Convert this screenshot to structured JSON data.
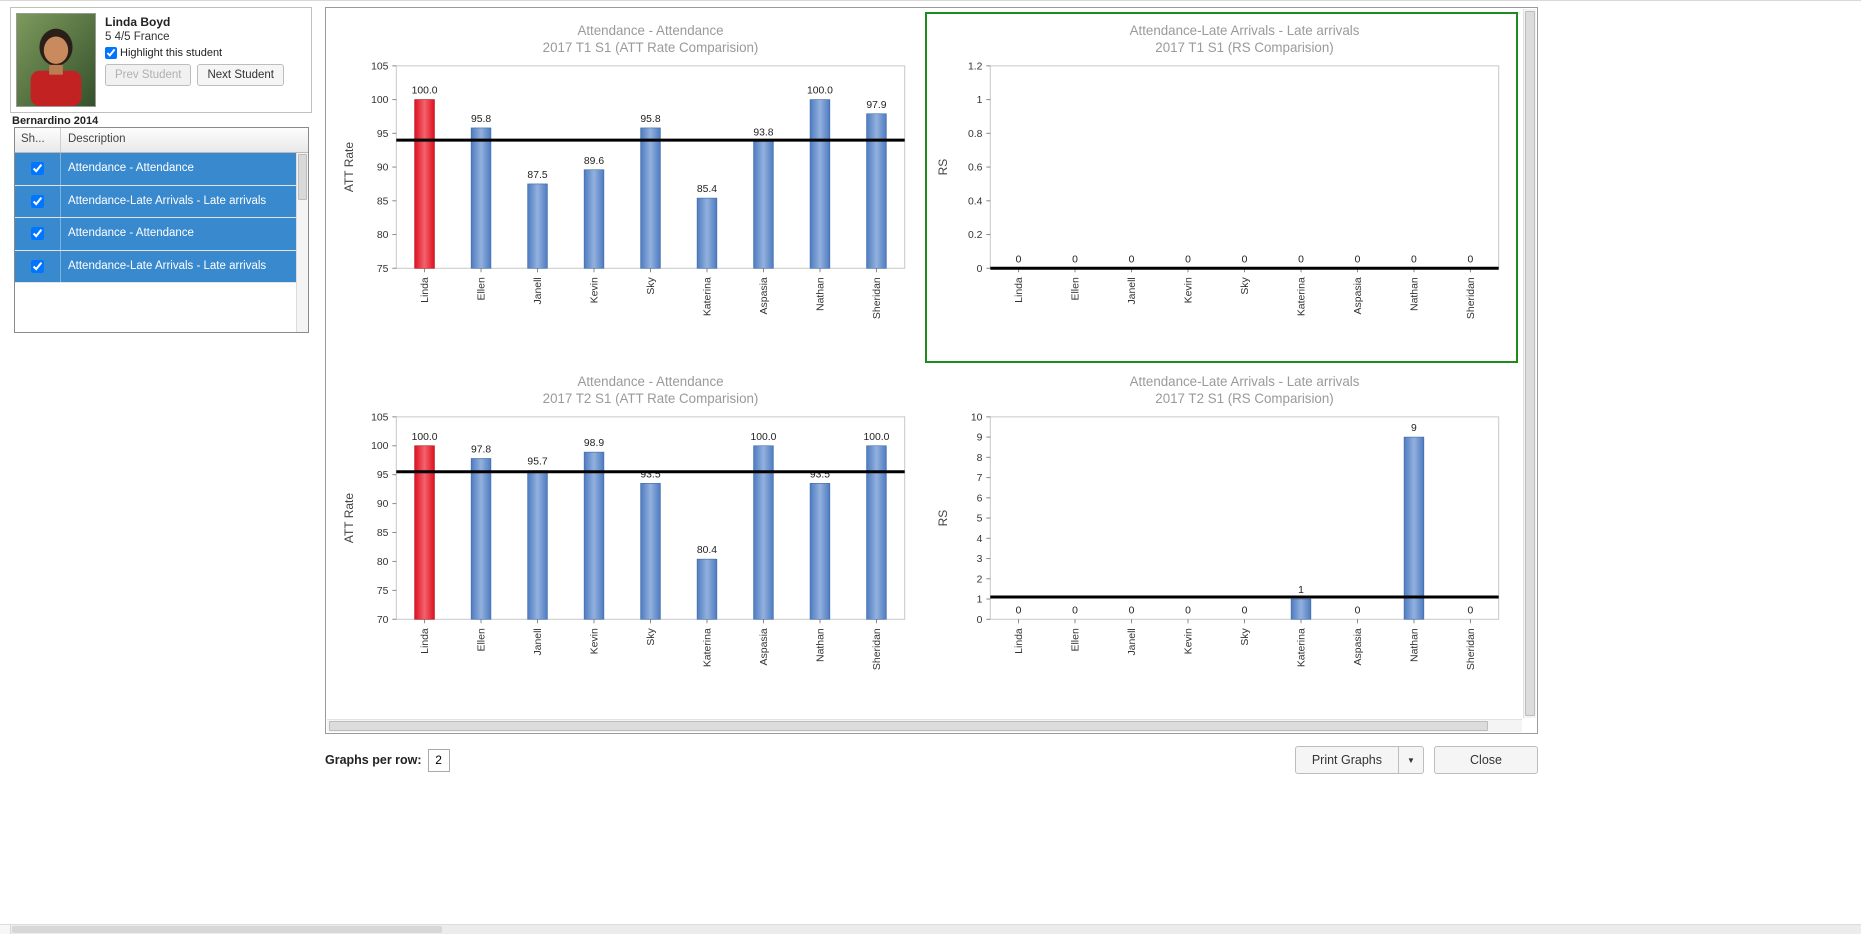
{
  "student_panel": {
    "name": "Linda Boyd",
    "details": "5 4/5 France",
    "highlight_label": "Highlight this student",
    "highlight_checked": true,
    "prev_button": "Prev Student",
    "next_button": "Next Student",
    "group_title": "Bernardino 2014",
    "table_headers": {
      "show": "Sh...",
      "description": "Description"
    },
    "rows": [
      {
        "checked": true,
        "description": "Attendance - Attendance"
      },
      {
        "checked": true,
        "description": "Attendance-Late Arrivals - Late arrivals"
      },
      {
        "checked": true,
        "description": "Attendance - Attendance"
      },
      {
        "checked": true,
        "description": "Attendance-Late Arrivals - Late arrivals"
      }
    ]
  },
  "footer": {
    "graphs_per_row_label": "Graphs per row:",
    "graphs_per_row_value": "2",
    "print_graphs_label": "Print Graphs",
    "dropdown_icon": "▼",
    "close_label": "Close"
  },
  "colors": {
    "bar_blue": "#4d7bc0",
    "bar_blue_light": "#93b1de",
    "bar_red": "#e0101f",
    "bar_red_light": "#f2636e",
    "selected_border": "#1f8b1f",
    "row_selected_blue": "#3989ce",
    "average_line": "#000000",
    "title_gray": "#9a9a9a"
  },
  "chart_data": [
    {
      "type": "bar",
      "title_line1": "Attendance - Attendance",
      "title_line2": "2017 T1 S1 (ATT Rate Comparision)",
      "ylabel": "ATT Rate",
      "ymin": 75,
      "ymax": 105,
      "ystep": 5,
      "categories": [
        "Linda",
        "Ellen",
        "Janell",
        "Kevin",
        "Sky",
        "Katerina",
        "Aspasia",
        "Nathan",
        "Sheridan"
      ],
      "values": [
        100.0,
        95.8,
        87.5,
        89.6,
        95.8,
        85.4,
        93.8,
        100.0,
        97.9
      ],
      "value_labels": [
        "100.0",
        "95.8",
        "87.5",
        "89.6",
        "95.8",
        "85.4",
        "93.8",
        "100.0",
        "97.9"
      ],
      "average_line": 94.0,
      "highlight_index": 0,
      "selected": false,
      "legend_position": "none",
      "grid": false
    },
    {
      "type": "bar",
      "title_line1": "Attendance-Late Arrivals - Late arrivals",
      "title_line2": "2017 T1 S1 (RS Comparision)",
      "ylabel": "RS",
      "ymin": 0,
      "ymax": 1.2,
      "ystep": 0.2,
      "categories": [
        "Linda",
        "Ellen",
        "Janell",
        "Kevin",
        "Sky",
        "Katerina",
        "Aspasia",
        "Nathan",
        "Sheridan"
      ],
      "values": [
        0,
        0,
        0,
        0,
        0,
        0,
        0,
        0,
        0
      ],
      "value_labels": [
        "0",
        "0",
        "0",
        "0",
        "0",
        "0",
        "0",
        "0",
        "0"
      ],
      "average_line": 0,
      "highlight_index": 0,
      "selected": true,
      "legend_position": "none",
      "grid": false
    },
    {
      "type": "bar",
      "title_line1": "Attendance - Attendance",
      "title_line2": "2017 T2 S1 (ATT Rate Comparision)",
      "ylabel": "ATT Rate",
      "ymin": 70,
      "ymax": 105,
      "ystep": 5,
      "categories": [
        "Linda",
        "Ellen",
        "Janell",
        "Kevin",
        "Sky",
        "Katerina",
        "Aspasia",
        "Nathan",
        "Sheridan"
      ],
      "values": [
        100.0,
        97.8,
        95.7,
        98.9,
        93.5,
        80.4,
        100.0,
        93.5,
        100.0
      ],
      "value_labels": [
        "100.0",
        "97.8",
        "95.7",
        "98.9",
        "93.5",
        "80.4",
        "100.0",
        "93.5",
        "100.0"
      ],
      "average_line": 95.5,
      "highlight_index": 0,
      "selected": false,
      "legend_position": "none",
      "grid": false
    },
    {
      "type": "bar",
      "title_line1": "Attendance-Late Arrivals - Late arrivals",
      "title_line2": "2017 T2 S1 (RS Comparision)",
      "ylabel": "RS",
      "ymin": 0,
      "ymax": 10,
      "ystep": 1,
      "categories": [
        "Linda",
        "Ellen",
        "Janell",
        "Kevin",
        "Sky",
        "Katerina",
        "Aspasia",
        "Nathan",
        "Sheridan"
      ],
      "values": [
        0,
        0,
        0,
        0,
        0,
        1,
        0,
        9,
        0
      ],
      "value_labels": [
        "0",
        "0",
        "0",
        "0",
        "0",
        "1",
        "0",
        "9",
        "0"
      ],
      "average_line": 1.1,
      "highlight_index": 0,
      "selected": false,
      "legend_position": "none",
      "grid": false
    }
  ]
}
